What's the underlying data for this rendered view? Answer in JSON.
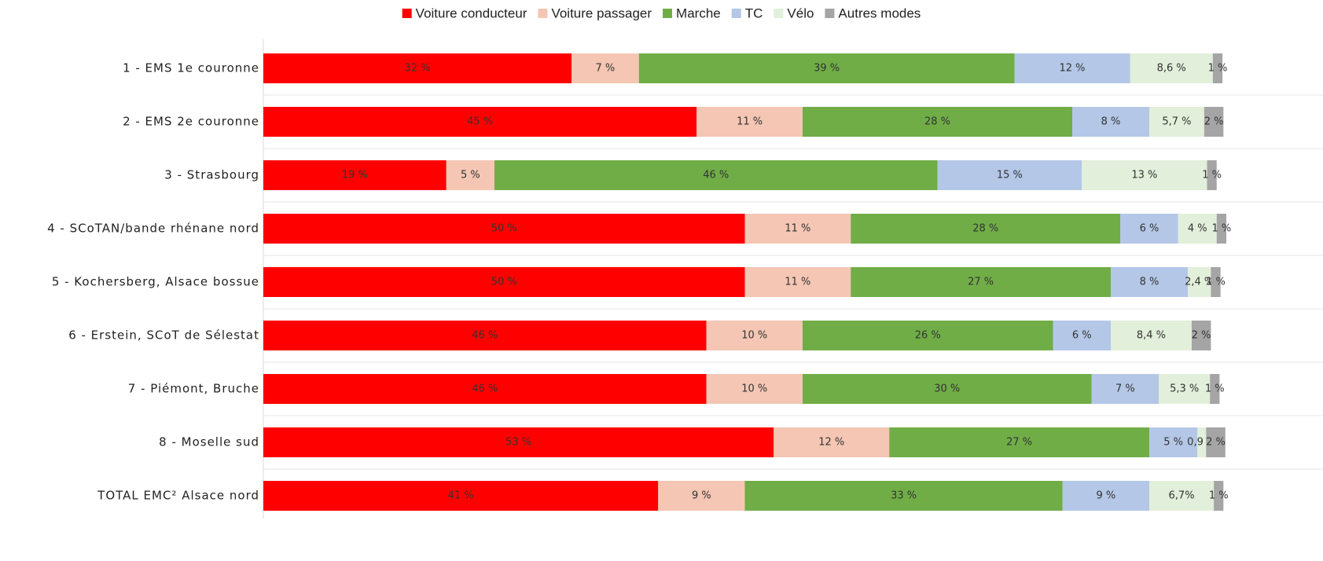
{
  "chart_data": {
    "type": "stacked_barh",
    "categories": [
      "1 - EMS 1e couronne",
      "2 - EMS 2e couronne",
      "3 - Strasbourg",
      "4 - SCoTAN/bande rhénane nord",
      "5 - Kochersberg, Alsace bossue",
      "6 - Erstein, SCoT de Sélestat",
      "7 - Piémont, Bruche",
      "8 - Moselle sud",
      "TOTAL EMC² Alsace nord"
    ],
    "xlim": [
      0,
      100
    ],
    "legend": "top",
    "series": [
      {
        "name": "Voiture conducteur",
        "color": "#ff0000",
        "values": [
          32,
          45,
          19,
          50,
          50,
          46,
          46,
          53,
          41
        ],
        "value_labels": [
          "32 %",
          "45 %",
          "19 %",
          "50 %",
          "50 %",
          "46 %",
          "46 %",
          "53 %",
          "41 %"
        ]
      },
      {
        "name": "Voiture passager",
        "color": "#f4c6b3",
        "values": [
          7,
          11,
          5,
          11,
          11,
          10,
          10,
          12,
          9
        ],
        "value_labels": [
          "7 %",
          "11 %",
          "5 %",
          "11 %",
          "11 %",
          "10 %",
          "10 %",
          "12 %",
          "9 %"
        ]
      },
      {
        "name": "Marche",
        "color": "#70ad47",
        "values": [
          39,
          28,
          46,
          28,
          27,
          26,
          30,
          27,
          33
        ],
        "value_labels": [
          "39 %",
          "28 %",
          "46 %",
          "28 %",
          "27 %",
          "26 %",
          "30 %",
          "27 %",
          "33 %"
        ]
      },
      {
        "name": "TC",
        "color": "#b4c7e7",
        "values": [
          12,
          8,
          15,
          6,
          8,
          6,
          7,
          5,
          9
        ],
        "value_labels": [
          "12 %",
          "8 %",
          "15 %",
          "6 %",
          "8 %",
          "6 %",
          "7 %",
          "5 %",
          "9 %"
        ]
      },
      {
        "name": "Vélo",
        "color": "#e2efda",
        "values": [
          8.6,
          5.7,
          13,
          4,
          2.4,
          8.4,
          5.3,
          0.9,
          6.7
        ],
        "value_labels": [
          "8,6 %",
          "5,7 %",
          "13 %",
          "4 %",
          "2,4 %",
          "8,4 %",
          "5,3 %",
          "0,9 %",
          "6,7%"
        ]
      },
      {
        "name": "Autres modes",
        "color": "#a5a5a5",
        "values": [
          1,
          2,
          1,
          1,
          1,
          2,
          1,
          2,
          1
        ],
        "value_labels": [
          "1 %",
          "2 %",
          "1 %",
          "1 %",
          "1 %",
          "2 %",
          "1 %",
          "2 %",
          "1 %"
        ]
      }
    ]
  }
}
